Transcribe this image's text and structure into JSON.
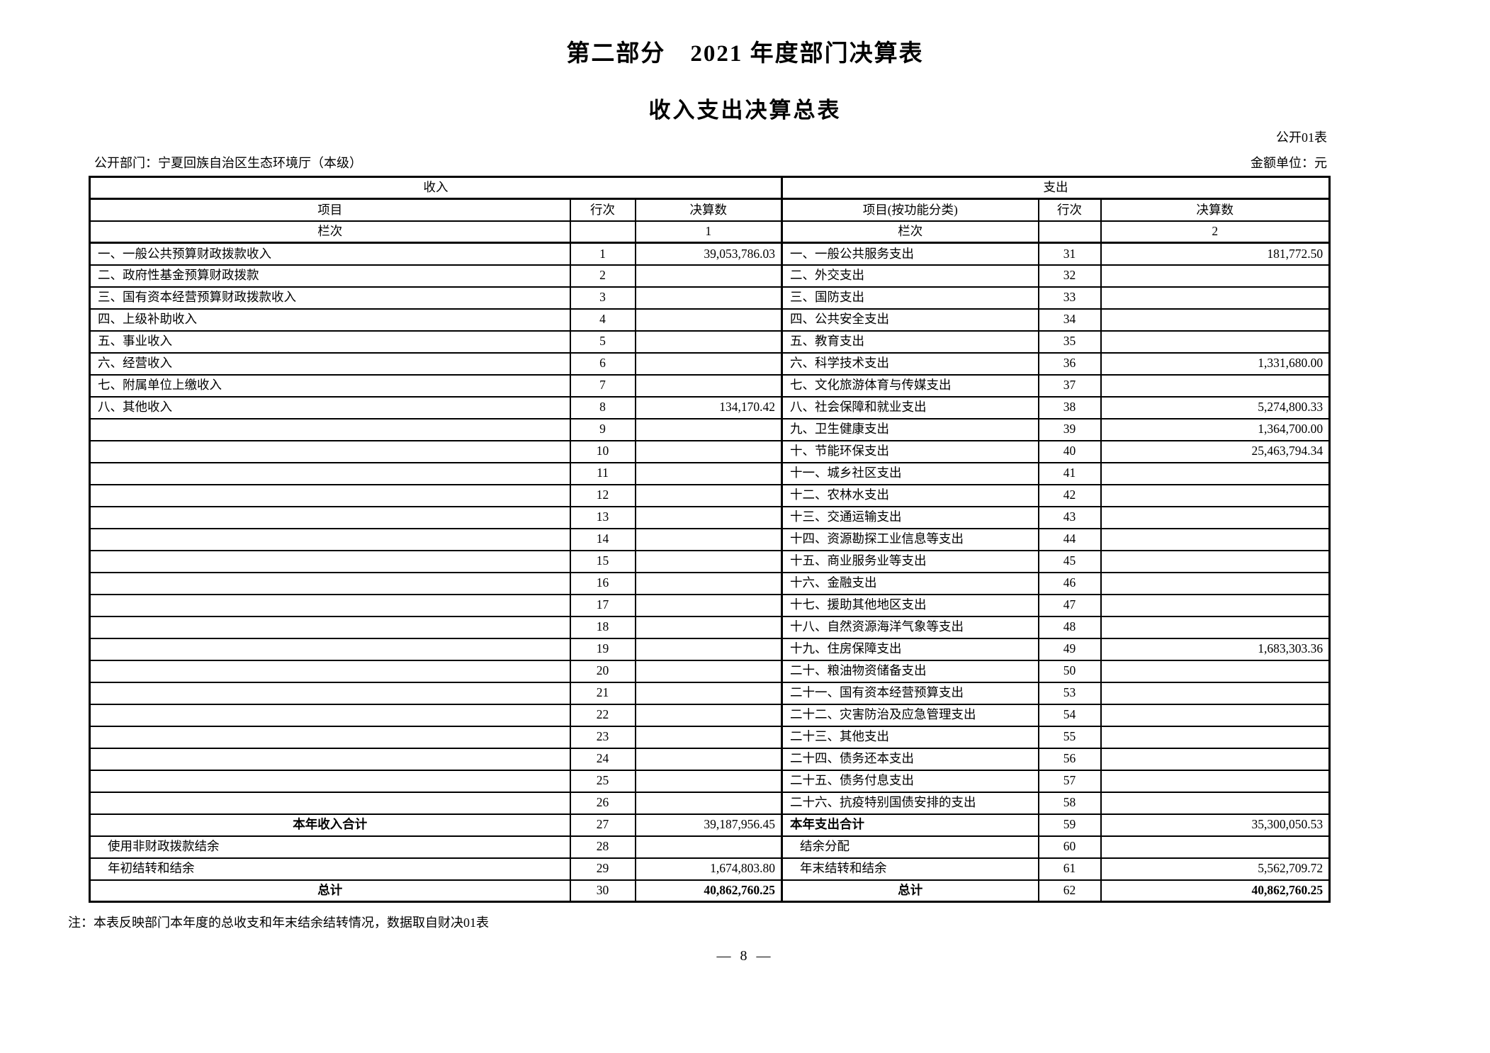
{
  "page": {
    "part_title": "第二部分　2021 年度部门决算表",
    "table_title": "收入支出决算总表",
    "table_code": "公开01表",
    "department": "公开部门：宁夏回族自治区生态环境厅（本级）",
    "unit": "金额单位：元",
    "note": "注：本表反映部门本年度的总收支和年末结余结转情况，数据取自财决01表",
    "page_number": "— 8 —"
  },
  "table": {
    "sections": {
      "income": "收入",
      "expense": "支出"
    },
    "headers": {
      "income_item": "项目",
      "income_row": "行次",
      "income_value": "决算数",
      "expense_item": "项目(按功能分类)",
      "expense_row": "行次",
      "expense_value": "决算数",
      "col_index_label": "栏次",
      "income_col_index": "1",
      "expense_col_index": "2"
    },
    "rows": [
      {
        "l": [
          "一、一般公共预算财政拨款收入",
          "1",
          "39,053,786.03",
          ""
        ],
        "r": [
          "一、一般公共服务支出",
          "31",
          "181,772.50",
          ""
        ]
      },
      {
        "l": [
          "二、政府性基金预算财政拨款",
          "2",
          "",
          ""
        ],
        "r": [
          "二、外交支出",
          "32",
          "",
          ""
        ]
      },
      {
        "l": [
          "三、国有资本经营预算财政拨款收入",
          "3",
          "",
          ""
        ],
        "r": [
          "三、国防支出",
          "33",
          "",
          ""
        ]
      },
      {
        "l": [
          "四、上级补助收入",
          "4",
          "",
          ""
        ],
        "r": [
          "四、公共安全支出",
          "34",
          "",
          ""
        ]
      },
      {
        "l": [
          "五、事业收入",
          "5",
          "",
          ""
        ],
        "r": [
          "五、教育支出",
          "35",
          "",
          ""
        ]
      },
      {
        "l": [
          "六、经营收入",
          "6",
          "",
          ""
        ],
        "r": [
          "六、科学技术支出",
          "36",
          "1,331,680.00",
          ""
        ]
      },
      {
        "l": [
          "七、附属单位上缴收入",
          "7",
          "",
          ""
        ],
        "r": [
          "七、文化旅游体育与传媒支出",
          "37",
          "",
          ""
        ]
      },
      {
        "l": [
          "八、其他收入",
          "8",
          "134,170.42",
          ""
        ],
        "r": [
          "八、社会保障和就业支出",
          "38",
          "5,274,800.33",
          ""
        ]
      },
      {
        "l": [
          "",
          "9",
          "",
          ""
        ],
        "r": [
          "九、卫生健康支出",
          "39",
          "1,364,700.00",
          ""
        ]
      },
      {
        "l": [
          "",
          "10",
          "",
          ""
        ],
        "r": [
          "十、节能环保支出",
          "40",
          "25,463,794.34",
          ""
        ]
      },
      {
        "l": [
          "",
          "11",
          "",
          ""
        ],
        "r": [
          "十一、城乡社区支出",
          "41",
          "",
          ""
        ]
      },
      {
        "l": [
          "",
          "12",
          "",
          ""
        ],
        "r": [
          "十二、农林水支出",
          "42",
          "",
          ""
        ]
      },
      {
        "l": [
          "",
          "13",
          "",
          ""
        ],
        "r": [
          "十三、交通运输支出",
          "43",
          "",
          ""
        ]
      },
      {
        "l": [
          "",
          "14",
          "",
          ""
        ],
        "r": [
          "十四、资源勘探工业信息等支出",
          "44",
          "",
          ""
        ]
      },
      {
        "l": [
          "",
          "15",
          "",
          ""
        ],
        "r": [
          "十五、商业服务业等支出",
          "45",
          "",
          ""
        ]
      },
      {
        "l": [
          "",
          "16",
          "",
          ""
        ],
        "r": [
          "十六、金融支出",
          "46",
          "",
          ""
        ]
      },
      {
        "l": [
          "",
          "17",
          "",
          ""
        ],
        "r": [
          "十七、援助其他地区支出",
          "47",
          "",
          ""
        ]
      },
      {
        "l": [
          "",
          "18",
          "",
          ""
        ],
        "r": [
          "十八、自然资源海洋气象等支出",
          "48",
          "",
          ""
        ]
      },
      {
        "l": [
          "",
          "19",
          "",
          ""
        ],
        "r": [
          "十九、住房保障支出",
          "49",
          "1,683,303.36",
          ""
        ]
      },
      {
        "l": [
          "",
          "20",
          "",
          ""
        ],
        "r": [
          "二十、粮油物资储备支出",
          "50",
          "",
          ""
        ]
      },
      {
        "l": [
          "",
          "21",
          "",
          ""
        ],
        "r": [
          "二十一、国有资本经营预算支出",
          "53",
          "",
          ""
        ]
      },
      {
        "l": [
          "",
          "22",
          "",
          ""
        ],
        "r": [
          "二十二、灾害防治及应急管理支出",
          "54",
          "",
          ""
        ]
      },
      {
        "l": [
          "",
          "23",
          "",
          ""
        ],
        "r": [
          "二十三、其他支出",
          "55",
          "",
          ""
        ]
      },
      {
        "l": [
          "",
          "24",
          "",
          ""
        ],
        "r": [
          "二十四、债务还本支出",
          "56",
          "",
          ""
        ]
      },
      {
        "l": [
          "",
          "25",
          "",
          ""
        ],
        "r": [
          "二十五、债务付息支出",
          "57",
          "",
          ""
        ]
      },
      {
        "l": [
          "",
          "26",
          "",
          ""
        ],
        "r": [
          "二十六、抗疫特别国债安排的支出",
          "58",
          "",
          ""
        ]
      },
      {
        "l": [
          "本年收入合计",
          "27",
          "39,187,956.45",
          "center-bold"
        ],
        "r": [
          "本年支出合计",
          "59",
          "35,300,050.53",
          "left-bold"
        ]
      },
      {
        "l": [
          "使用非财政拨款结余",
          "28",
          "",
          "indent"
        ],
        "r": [
          "结余分配",
          "60",
          "",
          "indent"
        ]
      },
      {
        "l": [
          "年初结转和结余",
          "29",
          "1,674,803.80",
          "indent"
        ],
        "r": [
          "年末结转和结余",
          "61",
          "5,562,709.72",
          "indent"
        ]
      },
      {
        "l": [
          "总计",
          "30",
          "40,862,760.25",
          "center-bold vbold"
        ],
        "r": [
          "总计",
          "62",
          "40,862,760.25",
          "center-bold vbold"
        ]
      }
    ]
  }
}
